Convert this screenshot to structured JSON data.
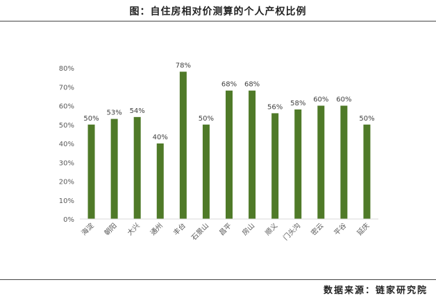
{
  "title": "图：自住房相对价测算的个人产权比例",
  "source": "数据来源：链家研究院",
  "colors": {
    "bar": "#4f7a28",
    "axis_text": "#595959",
    "baseline": "#d9d9d9"
  },
  "chart_data": {
    "type": "bar",
    "categories": [
      "海淀",
      "朝阳",
      "大兴",
      "通州",
      "丰台",
      "石景山",
      "昌平",
      "房山",
      "顺义",
      "门头沟",
      "密云",
      "平谷",
      "延庆"
    ],
    "values": [
      50,
      53,
      54,
      40,
      78,
      50,
      68,
      68,
      56,
      58,
      60,
      60,
      50
    ],
    "value_labels": [
      "50%",
      "53%",
      "54%",
      "40%",
      "78%",
      "50%",
      "68%",
      "68%",
      "56%",
      "58%",
      "60%",
      "60%",
      "50%"
    ],
    "yticks": [
      0,
      10,
      20,
      30,
      40,
      50,
      60,
      70,
      80
    ],
    "ytick_labels": [
      "0%",
      "10%",
      "20%",
      "30%",
      "40%",
      "50%",
      "60%",
      "70%",
      "80%"
    ],
    "ylim": [
      0,
      80
    ],
    "grid": false,
    "legend": "none"
  }
}
